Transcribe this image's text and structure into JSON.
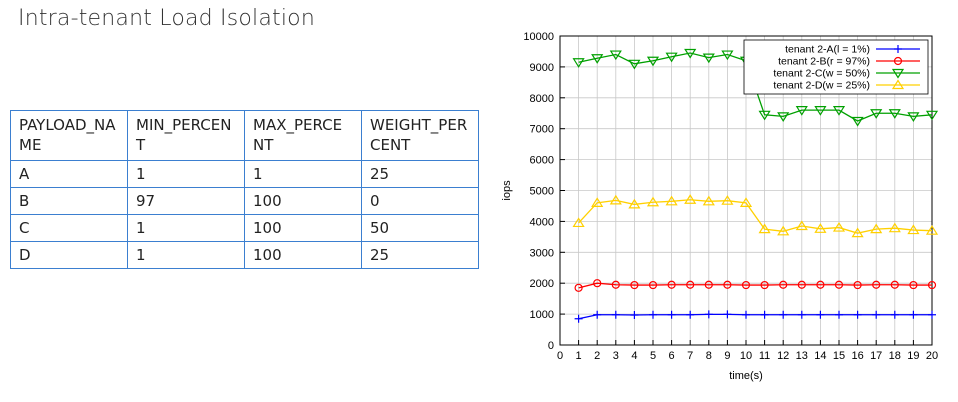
{
  "page": {
    "title": "Intra-tenant Load Isolation"
  },
  "table": {
    "headers": [
      "PAYLOAD_NAME",
      "MIN_PERCENT",
      "MAX_PERCENT",
      "WEIGHT_PERCENT"
    ],
    "rows": [
      [
        "A",
        "1",
        "1",
        "25"
      ],
      [
        "B",
        "97",
        "100",
        "0"
      ],
      [
        "C",
        "1",
        "100",
        "50"
      ],
      [
        "D",
        "1",
        "100",
        "25"
      ]
    ]
  },
  "chart_data": {
    "type": "line",
    "xlabel": "time(s)",
    "ylabel": "iops",
    "xlim": [
      0,
      20
    ],
    "ylim": [
      0,
      10000
    ],
    "xticks": [
      0,
      1,
      2,
      3,
      4,
      5,
      6,
      7,
      8,
      9,
      10,
      11,
      12,
      13,
      14,
      15,
      16,
      17,
      18,
      19,
      20
    ],
    "yticks": [
      0,
      1000,
      2000,
      3000,
      4000,
      5000,
      6000,
      7000,
      8000,
      9000,
      10000
    ],
    "grid": true,
    "legend_position": "top-right",
    "x": [
      1,
      2,
      3,
      4,
      5,
      6,
      7,
      8,
      9,
      10,
      11,
      12,
      13,
      14,
      15,
      16,
      17,
      18,
      19,
      20
    ],
    "series": [
      {
        "name": "tenant 2-A(l =   1%)",
        "color": "#0000ff",
        "marker": "plus",
        "values": [
          850,
          980,
          980,
          970,
          980,
          980,
          980,
          990,
          990,
          980,
          980,
          980,
          980,
          980,
          980,
          980,
          980,
          980,
          980,
          980
        ]
      },
      {
        "name": "tenant 2-B(r = 97%)",
        "color": "#ff0000",
        "marker": "circle",
        "values": [
          1850,
          2000,
          1950,
          1940,
          1940,
          1950,
          1950,
          1950,
          1950,
          1940,
          1940,
          1950,
          1950,
          1950,
          1950,
          1940,
          1950,
          1950,
          1940,
          1940
        ]
      },
      {
        "name": "tenant 2-C(w = 50%)",
        "color": "#00a000",
        "marker": "triangle-down",
        "values": [
          9150,
          9280,
          9400,
          9100,
          9200,
          9330,
          9450,
          9300,
          9400,
          9200,
          7450,
          7400,
          7600,
          7600,
          7600,
          7250,
          7500,
          7500,
          7400,
          7450
        ]
      },
      {
        "name": "tenant 2-D(w = 25%)",
        "color": "#ffd000",
        "marker": "triangle-up",
        "values": [
          3950,
          4600,
          4680,
          4550,
          4620,
          4650,
          4700,
          4650,
          4670,
          4600,
          3750,
          3680,
          3850,
          3760,
          3800,
          3620,
          3750,
          3780,
          3720,
          3700
        ]
      }
    ]
  }
}
